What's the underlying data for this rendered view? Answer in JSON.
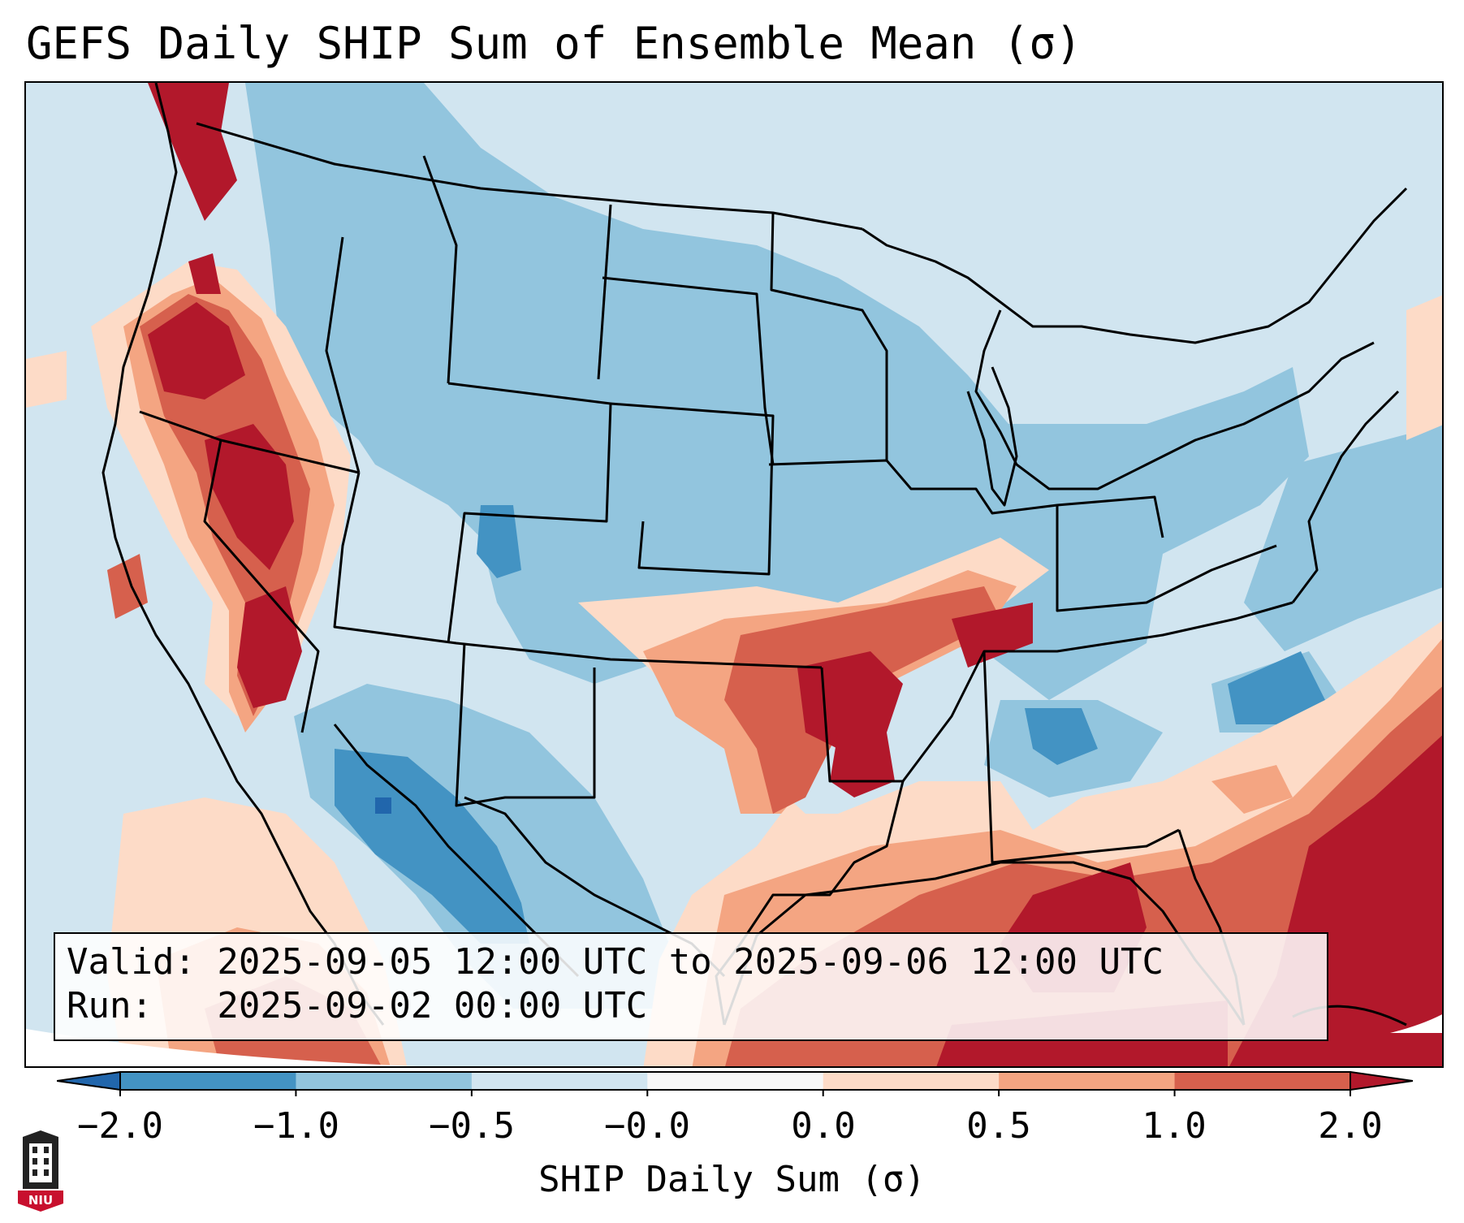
{
  "title": "GEFS Daily SHIP Sum of Ensemble Mean (σ)",
  "info": {
    "valid_line": "Valid: 2025-09-05 12:00 UTC to 2025-09-06 12:00 UTC",
    "run_line": "Run:   2025-09-02 00:00 UTC"
  },
  "colorbar": {
    "label": "SHIP Daily Sum (σ)",
    "ticks": [
      "−2.0",
      "−1.0",
      "−0.5",
      "−0.0",
      "0.0",
      "0.5",
      "1.0",
      "2.0"
    ],
    "colors": [
      "#4393c3",
      "#92c5de",
      "#d1e5f0",
      "#f7f7f7",
      "#fddbc7",
      "#f4a582",
      "#d6604d"
    ],
    "extend_low_color": "#2166ac",
    "extend_high_color": "#b2182b"
  },
  "logo": {
    "text": "NIU",
    "color": "#c8102e"
  }
}
